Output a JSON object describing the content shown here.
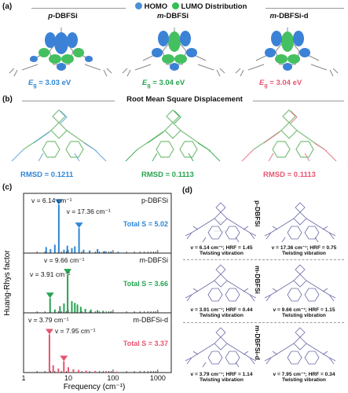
{
  "panel_a": {
    "label": "(a)",
    "legend": {
      "homo": "HOMO",
      "lumo": "LUMO",
      "suffix": "Distribution"
    },
    "molecules": [
      {
        "prefix": "p",
        "name": "-DBFSi",
        "eg_sym": "E",
        "eg_sub": "g",
        "eg_val": " = 3.03 eV",
        "color": "#2f86d6"
      },
      {
        "prefix": "m",
        "name": "-DBFSi",
        "eg_sym": "E",
        "eg_sub": "g",
        "eg_val": " = 3.04 eV",
        "color": "#27a351"
      },
      {
        "prefix": "m",
        "name": "-DBFSi-d",
        "eg_sym": "E",
        "eg_sub": "g",
        "eg_val": " = 3.04 eV",
        "color": "#e5566f"
      }
    ]
  },
  "panel_b": {
    "label": "(b)",
    "title": "Root Mean Square Displacement",
    "items": [
      {
        "text": "RMSD = 0.1211",
        "color": "#2f86d6"
      },
      {
        "text": "RMSD = 0.1113",
        "color": "#27a351"
      },
      {
        "text": "RMSD = 0.1113",
        "color": "#e5566f"
      }
    ]
  },
  "panel_c": {
    "label": "(c)",
    "ylabel": "Huang-Rhys factor",
    "xlabel": "Frequency  (cm⁻¹)",
    "xticks": [
      "1",
      "10",
      "100",
      "1000"
    ]
  },
  "chart_data": {
    "type": "bar",
    "xlabel": "Frequency  (cm⁻¹)",
    "ylabel": "Huang-Rhys factor",
    "xscale": "log",
    "xlim": [
      1,
      2000
    ],
    "series": [
      {
        "name": "p-DBFSi",
        "color": "#2f86d6",
        "total": "Total S = 5.02",
        "peaks": [
          {
            "label": "v = 6.14 cm⁻¹",
            "x": 6.14
          },
          {
            "label": "v = 17.36 cm⁻¹",
            "x": 17.36
          }
        ],
        "x": [
          3.2,
          4.0,
          5.0,
          6.14,
          8.0,
          9.5,
          12,
          14,
          17.36,
          22,
          30,
          45,
          65,
          90,
          130
        ],
        "values": [
          0.18,
          0.12,
          0.25,
          1.45,
          0.1,
          0.22,
          0.15,
          0.2,
          0.75,
          0.1,
          0.08,
          0.12,
          0.06,
          0.05,
          0.04
        ]
      },
      {
        "name": "m-DBFSi",
        "color": "#27a351",
        "total": "Total S = 3.66",
        "peaks": [
          {
            "label": "v = 9.66 cm⁻¹",
            "x": 9.66
          },
          {
            "label": "v = 3.91 cm⁻¹",
            "x": 3.91
          }
        ],
        "x": [
          3.91,
          5.0,
          6.5,
          8.0,
          9.66,
          12,
          14,
          16,
          19,
          24,
          32,
          45,
          60,
          90
        ],
        "values": [
          0.44,
          0.1,
          0.2,
          0.28,
          1.15,
          0.35,
          0.3,
          0.25,
          0.18,
          0.12,
          0.1,
          0.08,
          0.06,
          0.04
        ]
      },
      {
        "name": "m-DBFSi-d",
        "color": "#e5566f",
        "total": "Total S = 3.37",
        "peaks": [
          {
            "label": "v = 3.79 cm⁻¹",
            "x": 3.79
          },
          {
            "label": "v = 7.95 cm⁻¹",
            "x": 7.95
          }
        ],
        "x": [
          3.79,
          4.6,
          6.0,
          7.95,
          10,
          13,
          17,
          25,
          40,
          70,
          120
        ],
        "values": [
          1.14,
          0.22,
          0.12,
          0.34,
          0.16,
          0.1,
          0.08,
          0.06,
          0.05,
          0.04,
          0.03
        ]
      }
    ]
  },
  "panel_d": {
    "label": "(d)",
    "rows": [
      {
        "name": "p-DBFSi",
        "left": {
          "freq": "v = 6.14 cm⁻¹; HRF = 1.45",
          "mode": "Twisting vibration"
        },
        "right": {
          "freq": "v = 17.36 cm⁻¹; HRF = 0.75",
          "mode": "Twisting vibration"
        }
      },
      {
        "name": "m-DBFSi",
        "left": {
          "freq": "v = 3.91 cm⁻¹; HRF = 0.44",
          "mode": "Twisting vibration"
        },
        "right": {
          "freq": "v = 9.66 cm⁻¹; HRF = 1.15",
          "mode": "Twisting vibration"
        }
      },
      {
        "name": "m-DBFSi-d",
        "left": {
          "freq": "v = 3.79 cm⁻¹; HRF = 1.14",
          "mode": "Twisting vibration"
        },
        "right": {
          "freq": "v = 7.95 cm⁻¹; HRF = 0.34",
          "mode": "Twisting vibration"
        }
      }
    ]
  }
}
